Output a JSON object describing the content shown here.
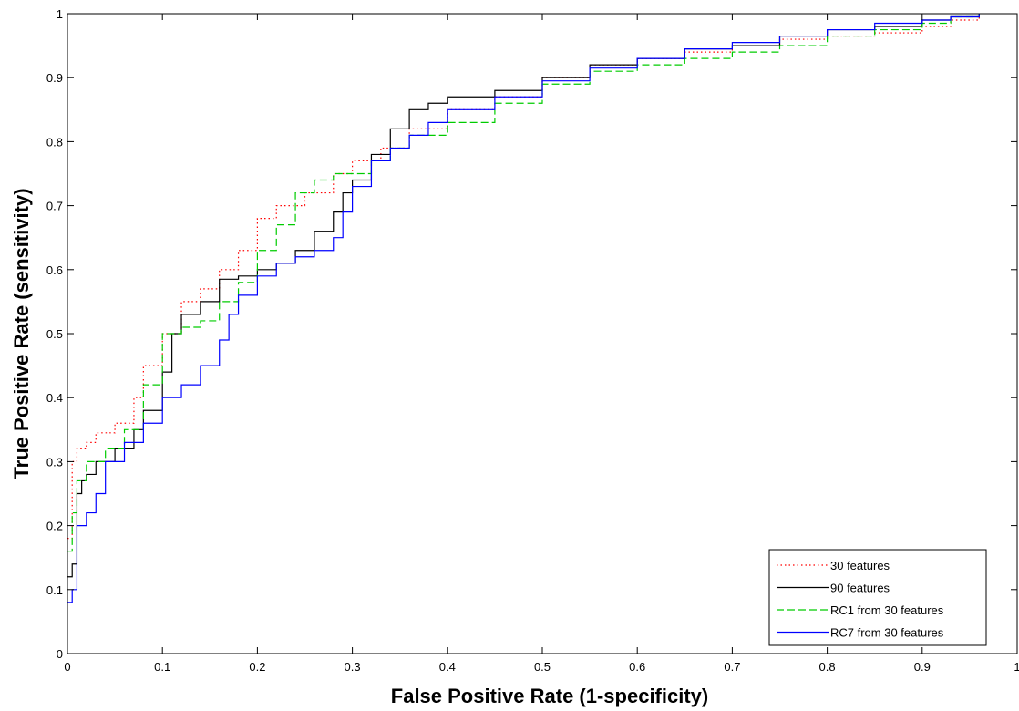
{
  "chart_data": {
    "type": "line",
    "title": "",
    "xlabel": "False Positive Rate (1-specificity)",
    "ylabel": "True Positive Rate (sensitivity)",
    "xlim": [
      0,
      1
    ],
    "ylim": [
      0,
      1
    ],
    "x_ticks": [
      "0",
      "0.1",
      "0.2",
      "0.3",
      "0.4",
      "0.5",
      "0.6",
      "0.7",
      "0.8",
      "0.9",
      "1"
    ],
    "y_ticks": [
      "0",
      "0.1",
      "0.2",
      "0.3",
      "0.4",
      "0.5",
      "0.6",
      "0.7",
      "0.8",
      "0.9",
      "1"
    ],
    "grid": false,
    "legend_position": "bottom-right",
    "series": [
      {
        "name": "30 features",
        "color": "#ff0000",
        "style": "dotted",
        "x": [
          0,
          0.005,
          0.01,
          0.02,
          0.03,
          0.05,
          0.07,
          0.08,
          0.1,
          0.12,
          0.14,
          0.16,
          0.18,
          0.2,
          0.22,
          0.25,
          0.28,
          0.3,
          0.33,
          0.36,
          0.4,
          0.45,
          0.5,
          0.55,
          0.6,
          0.65,
          0.7,
          0.75,
          0.8,
          0.85,
          0.9,
          0.93,
          0.96
        ],
        "y": [
          0.18,
          0.3,
          0.32,
          0.33,
          0.345,
          0.36,
          0.4,
          0.45,
          0.5,
          0.55,
          0.57,
          0.6,
          0.63,
          0.68,
          0.7,
          0.72,
          0.75,
          0.77,
          0.79,
          0.82,
          0.85,
          0.87,
          0.9,
          0.92,
          0.93,
          0.94,
          0.95,
          0.96,
          0.965,
          0.97,
          0.98,
          0.99,
          1.0
        ]
      },
      {
        "name": "90 features",
        "color": "#000000",
        "style": "solid",
        "x": [
          0,
          0.005,
          0.01,
          0.015,
          0.02,
          0.03,
          0.05,
          0.07,
          0.08,
          0.1,
          0.11,
          0.12,
          0.14,
          0.16,
          0.18,
          0.2,
          0.22,
          0.24,
          0.26,
          0.28,
          0.29,
          0.3,
          0.32,
          0.34,
          0.36,
          0.38,
          0.4,
          0.45,
          0.5,
          0.55,
          0.6,
          0.65,
          0.7,
          0.75,
          0.8,
          0.85,
          0.9,
          0.93,
          0.96
        ],
        "y": [
          0.12,
          0.14,
          0.25,
          0.27,
          0.28,
          0.3,
          0.32,
          0.35,
          0.38,
          0.44,
          0.5,
          0.53,
          0.55,
          0.585,
          0.59,
          0.6,
          0.61,
          0.63,
          0.66,
          0.69,
          0.72,
          0.74,
          0.78,
          0.82,
          0.85,
          0.86,
          0.87,
          0.88,
          0.9,
          0.92,
          0.93,
          0.945,
          0.95,
          0.965,
          0.975,
          0.98,
          0.99,
          0.995,
          1.0
        ]
      },
      {
        "name": "RC1 from 30 features",
        "color": "#00cc00",
        "style": "dashed",
        "x": [
          0,
          0.005,
          0.01,
          0.02,
          0.04,
          0.06,
          0.08,
          0.1,
          0.12,
          0.14,
          0.16,
          0.18,
          0.2,
          0.22,
          0.24,
          0.26,
          0.28,
          0.3,
          0.32,
          0.34,
          0.36,
          0.4,
          0.45,
          0.5,
          0.55,
          0.6,
          0.65,
          0.7,
          0.75,
          0.8,
          0.85,
          0.9,
          0.93,
          0.96
        ],
        "y": [
          0.16,
          0.22,
          0.27,
          0.3,
          0.32,
          0.35,
          0.42,
          0.5,
          0.51,
          0.52,
          0.55,
          0.58,
          0.63,
          0.67,
          0.72,
          0.74,
          0.75,
          0.75,
          0.77,
          0.79,
          0.81,
          0.83,
          0.86,
          0.89,
          0.91,
          0.92,
          0.93,
          0.94,
          0.95,
          0.965,
          0.975,
          0.985,
          0.995,
          1.0
        ]
      },
      {
        "name": "RC7 from 30 features",
        "color": "#0000ff",
        "style": "solid",
        "x": [
          0,
          0.005,
          0.01,
          0.02,
          0.03,
          0.04,
          0.06,
          0.08,
          0.1,
          0.12,
          0.14,
          0.16,
          0.17,
          0.18,
          0.2,
          0.22,
          0.24,
          0.26,
          0.28,
          0.29,
          0.3,
          0.32,
          0.34,
          0.36,
          0.38,
          0.4,
          0.45,
          0.5,
          0.55,
          0.6,
          0.65,
          0.7,
          0.75,
          0.8,
          0.85,
          0.9,
          0.93,
          0.96
        ],
        "y": [
          0.08,
          0.1,
          0.2,
          0.22,
          0.25,
          0.3,
          0.33,
          0.36,
          0.4,
          0.42,
          0.45,
          0.49,
          0.53,
          0.56,
          0.59,
          0.61,
          0.62,
          0.63,
          0.65,
          0.69,
          0.73,
          0.77,
          0.79,
          0.81,
          0.83,
          0.85,
          0.87,
          0.895,
          0.915,
          0.93,
          0.945,
          0.955,
          0.965,
          0.975,
          0.985,
          0.99,
          0.995,
          1.0
        ]
      }
    ]
  }
}
